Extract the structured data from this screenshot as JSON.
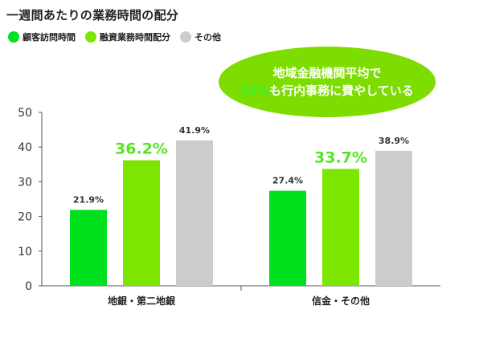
{
  "title": "一週間あたりの業務時間の配分",
  "legend": [
    {
      "label": "顧客訪問時間",
      "color": "#00e11e"
    },
    {
      "label": "融資業務時間配分",
      "color": "#7de600"
    },
    {
      "label": "その他",
      "color": "#cccccc"
    }
  ],
  "callout": {
    "line1": "地域金融機関平均で",
    "highlight": "35%",
    "line2_rest": "も行内事務に費やしている",
    "bg_color": "#7ddc00",
    "text_color": "#ffffff",
    "highlight_color": "#3cf02c"
  },
  "chart_data": {
    "type": "bar",
    "categories": [
      "地銀・第二地銀",
      "信金・その他"
    ],
    "series": [
      {
        "name": "顧客訪問時間",
        "values": [
          21.9,
          27.4
        ],
        "labels": [
          "21.9%",
          "27.4%"
        ],
        "color": "#00e11e"
      },
      {
        "name": "融資業務時間配分",
        "values": [
          36.2,
          33.7
        ],
        "labels": [
          "36.2%",
          "33.7%"
        ],
        "color": "#7de600"
      },
      {
        "name": "その他",
        "values": [
          41.9,
          38.9
        ],
        "labels": [
          "41.9%",
          "38.9%"
        ],
        "color": "#cccccc"
      }
    ],
    "yticks": [
      "0",
      "10",
      "20",
      "30",
      "40",
      "50"
    ],
    "ylim": [
      0,
      50
    ],
    "grid": false,
    "emphasis_color": "#55e622"
  }
}
